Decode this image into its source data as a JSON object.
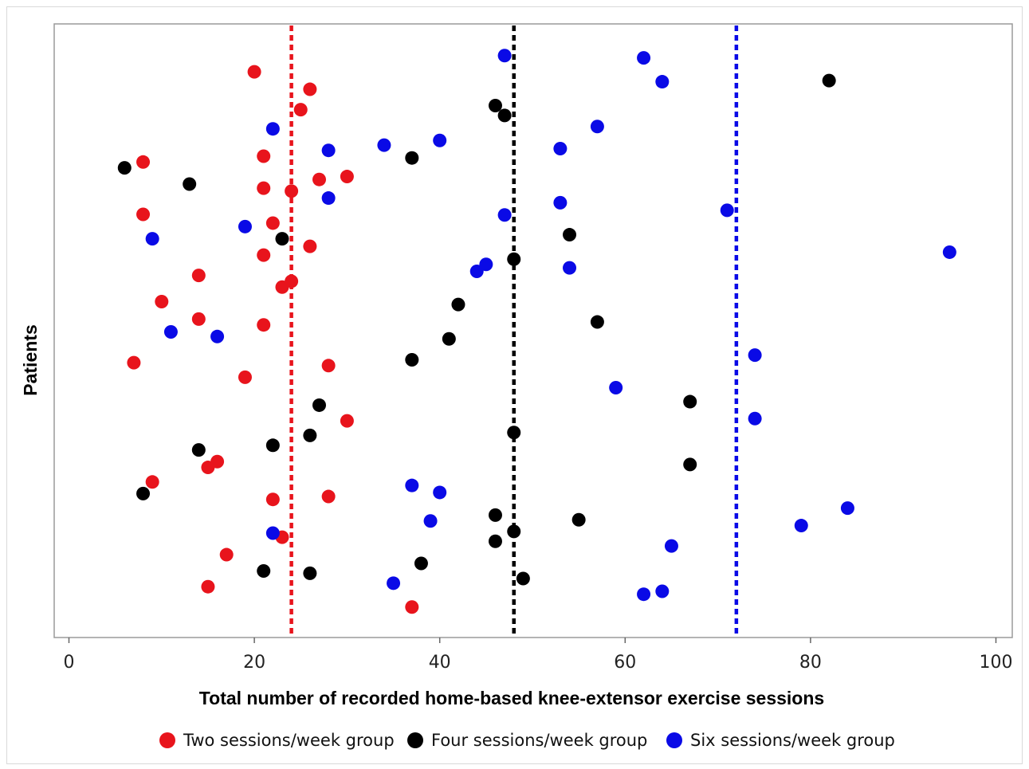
{
  "chart_data": {
    "type": "scatter",
    "xlabel": "Total number of recorded home-based knee-extensor exercise sessions",
    "ylabel": "Patients",
    "xlim": [
      -2,
      102
    ],
    "ylim": [
      0,
      100
    ],
    "xticks": [
      0,
      20,
      40,
      60,
      80,
      100
    ],
    "grid": false,
    "legend_placement": "bottom",
    "series": [
      {
        "name": "Two sessions/week group",
        "color": "#e8141c",
        "mean_line": 24,
        "points": [
          {
            "x": 20,
            "y": 94.5
          },
          {
            "x": 26,
            "y": 91.5
          },
          {
            "x": 25,
            "y": 88.0
          },
          {
            "x": 21,
            "y": 80.0
          },
          {
            "x": 8,
            "y": 79.0
          },
          {
            "x": 30,
            "y": 76.5
          },
          {
            "x": 27,
            "y": 76.0
          },
          {
            "x": 21,
            "y": 74.5
          },
          {
            "x": 24,
            "y": 74.0
          },
          {
            "x": 8,
            "y": 70.0
          },
          {
            "x": 22,
            "y": 68.5
          },
          {
            "x": 26,
            "y": 64.5
          },
          {
            "x": 21,
            "y": 63.0
          },
          {
            "x": 14,
            "y": 59.5
          },
          {
            "x": 24,
            "y": 58.5
          },
          {
            "x": 23,
            "y": 57.5
          },
          {
            "x": 10,
            "y": 55.0
          },
          {
            "x": 14,
            "y": 52.0
          },
          {
            "x": 21,
            "y": 51.0
          },
          {
            "x": 7,
            "y": 44.5
          },
          {
            "x": 28,
            "y": 44.0
          },
          {
            "x": 19,
            "y": 42.0
          },
          {
            "x": 30,
            "y": 34.5
          },
          {
            "x": 16,
            "y": 27.5
          },
          {
            "x": 15,
            "y": 26.5
          },
          {
            "x": 9,
            "y": 24.0
          },
          {
            "x": 28,
            "y": 21.5
          },
          {
            "x": 22,
            "y": 21.0
          },
          {
            "x": 23,
            "y": 14.5
          },
          {
            "x": 17,
            "y": 11.5
          },
          {
            "x": 15,
            "y": 6.0
          },
          {
            "x": 37,
            "y": 2.5
          }
        ]
      },
      {
        "name": "Four sessions/week group",
        "color": "#000000",
        "mean_line": 48,
        "points": [
          {
            "x": 82,
            "y": 93.0
          },
          {
            "x": 46,
            "y": 88.7
          },
          {
            "x": 47,
            "y": 87.0
          },
          {
            "x": 37,
            "y": 79.7
          },
          {
            "x": 6,
            "y": 78.0
          },
          {
            "x": 13,
            "y": 75.2
          },
          {
            "x": 23,
            "y": 65.8
          },
          {
            "x": 54,
            "y": 66.5
          },
          {
            "x": 48,
            "y": 62.3
          },
          {
            "x": 42,
            "y": 54.5
          },
          {
            "x": 57,
            "y": 51.5
          },
          {
            "x": 41,
            "y": 48.6
          },
          {
            "x": 37,
            "y": 45.0
          },
          {
            "x": 67,
            "y": 37.8
          },
          {
            "x": 27,
            "y": 37.2
          },
          {
            "x": 48,
            "y": 32.5
          },
          {
            "x": 26,
            "y": 32.0
          },
          {
            "x": 22,
            "y": 30.3
          },
          {
            "x": 14,
            "y": 29.5
          },
          {
            "x": 67,
            "y": 27.0
          },
          {
            "x": 8,
            "y": 22.0
          },
          {
            "x": 46,
            "y": 18.3
          },
          {
            "x": 55,
            "y": 17.5
          },
          {
            "x": 48,
            "y": 15.5
          },
          {
            "x": 46,
            "y": 13.8
          },
          {
            "x": 38,
            "y": 10.0
          },
          {
            "x": 21,
            "y": 8.7
          },
          {
            "x": 26,
            "y": 8.3
          },
          {
            "x": 49,
            "y": 7.4
          }
        ]
      },
      {
        "name": "Six sessions/week group",
        "color": "#0a0ae6",
        "mean_line": 72,
        "points": [
          {
            "x": 47,
            "y": 97.3
          },
          {
            "x": 62,
            "y": 96.9
          },
          {
            "x": 64,
            "y": 92.8
          },
          {
            "x": 22,
            "y": 84.7
          },
          {
            "x": 57,
            "y": 85.1
          },
          {
            "x": 40,
            "y": 82.7
          },
          {
            "x": 34,
            "y": 81.9
          },
          {
            "x": 53,
            "y": 81.3
          },
          {
            "x": 28,
            "y": 81.0
          },
          {
            "x": 28,
            "y": 72.8
          },
          {
            "x": 53,
            "y": 72.0
          },
          {
            "x": 71,
            "y": 70.7
          },
          {
            "x": 47,
            "y": 69.9
          },
          {
            "x": 19,
            "y": 67.9
          },
          {
            "x": 9,
            "y": 65.8
          },
          {
            "x": 95,
            "y": 63.5
          },
          {
            "x": 45,
            "y": 61.4
          },
          {
            "x": 44,
            "y": 60.2
          },
          {
            "x": 54,
            "y": 60.8
          },
          {
            "x": 11,
            "y": 49.8
          },
          {
            "x": 16,
            "y": 49.0
          },
          {
            "x": 74,
            "y": 45.8
          },
          {
            "x": 59,
            "y": 40.2
          },
          {
            "x": 74,
            "y": 34.9
          },
          {
            "x": 37,
            "y": 23.4
          },
          {
            "x": 40,
            "y": 22.2
          },
          {
            "x": 84,
            "y": 19.5
          },
          {
            "x": 39,
            "y": 17.3
          },
          {
            "x": 79,
            "y": 16.5
          },
          {
            "x": 22,
            "y": 15.2
          },
          {
            "x": 65,
            "y": 13.0
          },
          {
            "x": 35,
            "y": 6.6
          },
          {
            "x": 64,
            "y": 5.2
          },
          {
            "x": 62,
            "y": 4.7
          }
        ]
      }
    ]
  }
}
